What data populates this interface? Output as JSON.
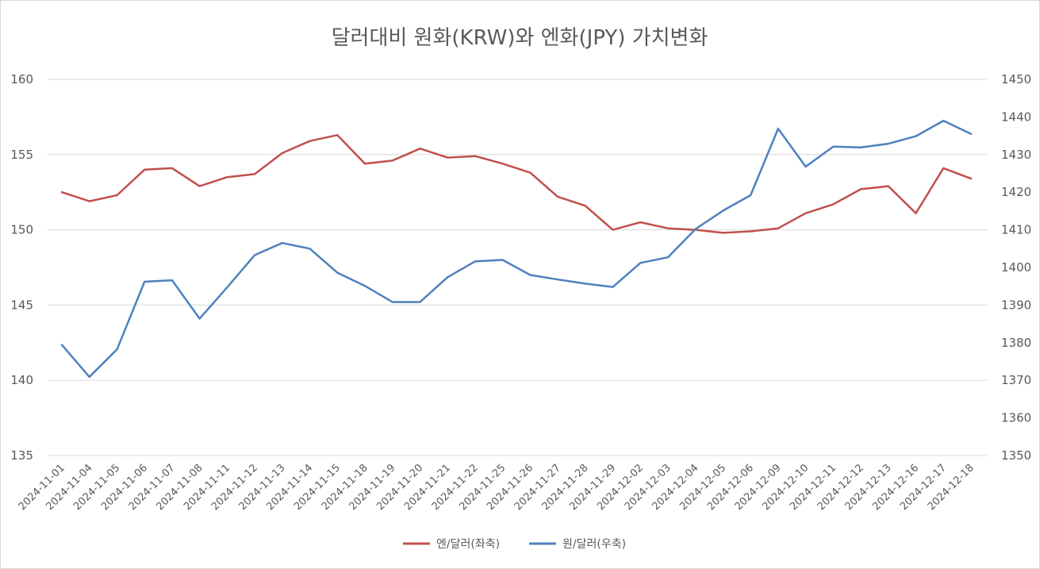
{
  "chart_data": {
    "type": "line",
    "title": "달러대비 원화(KRW)와 엔화(JPY) 가치변화",
    "categories": [
      "2024-11-01",
      "2024-11-04",
      "2024-11-05",
      "2024-11-06",
      "2024-11-07",
      "2024-11-08",
      "2024-11-11",
      "2024-11-12",
      "2024-11-13",
      "2024-11-14",
      "2024-11-15",
      "2024-11-18",
      "2024-11-19",
      "2024-11-20",
      "2024-11-21",
      "2024-11-22",
      "2024-11-25",
      "2024-11-26",
      "2024-11-27",
      "2024-11-28",
      "2024-11-29",
      "2024-12-02",
      "2024-12-03",
      "2024-12-04",
      "2024-12-05",
      "2024-12-06",
      "2024-12-09",
      "2024-12-10",
      "2024-12-11",
      "2024-12-12",
      "2024-12-13",
      "2024-12-16",
      "2024-12-17",
      "2024-12-18"
    ],
    "y_left": {
      "ylim": [
        135,
        160
      ],
      "ticks": [
        135,
        140,
        145,
        150,
        155,
        160
      ]
    },
    "y_right": {
      "ylim": [
        1350,
        1450
      ],
      "ticks": [
        1350,
        1360,
        1370,
        1380,
        1390,
        1400,
        1410,
        1420,
        1430,
        1440,
        1450
      ]
    },
    "grid": true,
    "legend_position": "bottom",
    "series": [
      {
        "name": "엔/달러(좌축)",
        "axis": "left",
        "color": "#c0504d",
        "values": [
          152.5,
          151.9,
          152.3,
          154.0,
          154.1,
          152.9,
          153.5,
          153.7,
          155.1,
          155.9,
          156.3,
          154.4,
          154.6,
          155.4,
          154.8,
          154.9,
          154.4,
          153.8,
          152.2,
          151.6,
          150.0,
          150.5,
          150.1,
          150.0,
          149.8,
          149.9,
          150.1,
          151.1,
          151.7,
          152.7,
          152.9,
          151.1,
          154.1,
          153.4
        ]
      },
      {
        "name": "원/달러(우축)",
        "axis": "right",
        "color": "#4f81bd",
        "values": [
          1379.4,
          1370.9,
          1378.2,
          1396.2,
          1396.6,
          1386.4,
          1394.7,
          1403.3,
          1406.5,
          1405.0,
          1398.6,
          1395.1,
          1390.8,
          1390.8,
          1397.4,
          1401.6,
          1402.0,
          1398.0,
          1396.8,
          1395.7,
          1394.8,
          1401.2,
          1402.7,
          1410.2,
          1415.1,
          1419.2,
          1436.9,
          1426.8,
          1432.1,
          1431.9,
          1432.9,
          1434.9,
          1439.0,
          1435.5
        ]
      }
    ]
  }
}
